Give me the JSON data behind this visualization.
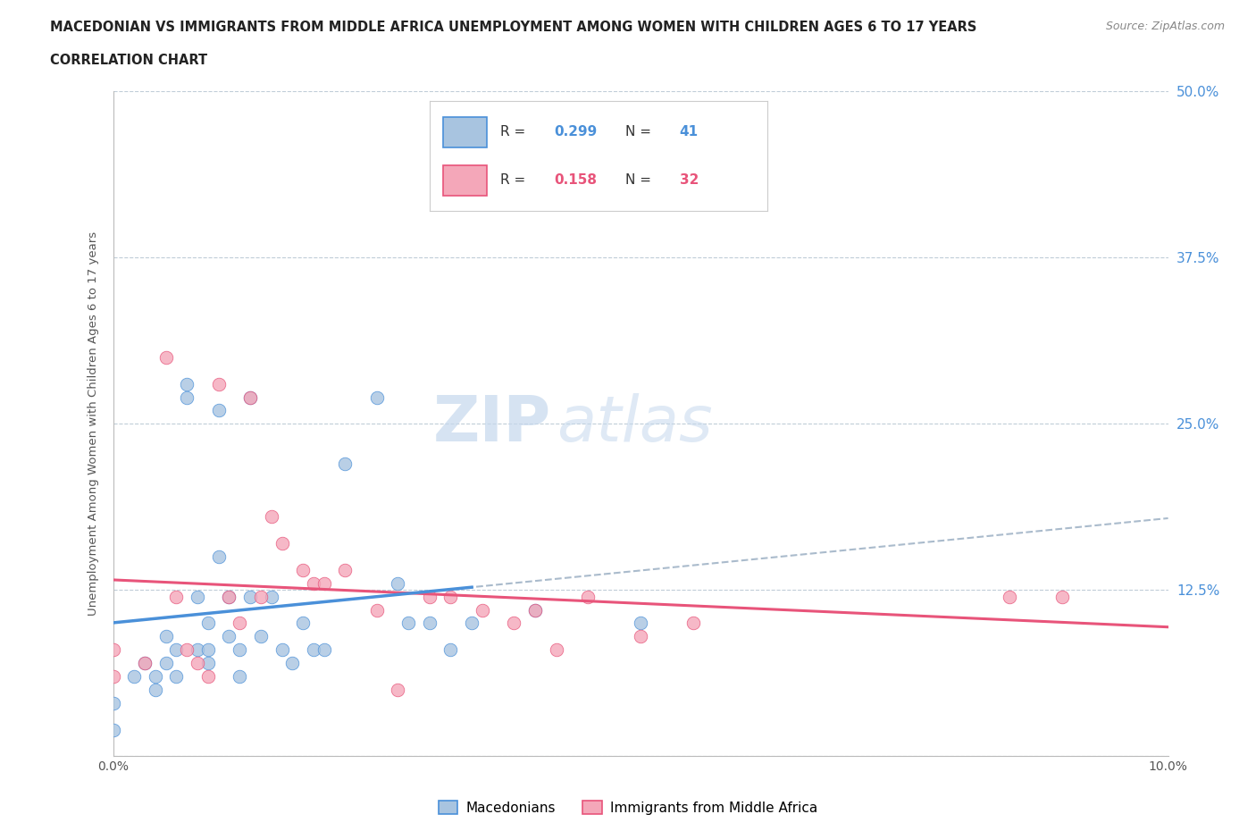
{
  "title_line1": "MACEDONIAN VS IMMIGRANTS FROM MIDDLE AFRICA UNEMPLOYMENT AMONG WOMEN WITH CHILDREN AGES 6 TO 17 YEARS",
  "title_line2": "CORRELATION CHART",
  "source": "Source: ZipAtlas.com",
  "ylabel": "Unemployment Among Women with Children Ages 6 to 17 years",
  "x_min": 0.0,
  "x_max": 0.1,
  "y_min": 0.0,
  "y_max": 0.5,
  "x_ticks": [
    0.0,
    0.02,
    0.04,
    0.06,
    0.08,
    0.1
  ],
  "x_tick_labels": [
    "0.0%",
    "",
    "",
    "",
    "",
    "10.0%"
  ],
  "y_ticks": [
    0.0,
    0.125,
    0.25,
    0.375,
    0.5
  ],
  "y_tick_labels": [
    "",
    "12.5%",
    "25.0%",
    "37.5%",
    "50.0%"
  ],
  "macedonian_R": 0.299,
  "macedonian_N": 41,
  "immigrant_R": 0.158,
  "immigrant_N": 32,
  "macedonian_color": "#a8c4e0",
  "immigrant_color": "#f4a7b9",
  "macedonian_line_color": "#4a90d9",
  "immigrant_line_color": "#e8547a",
  "trendline_dashed_color": "#aabbcc",
  "background_color": "#ffffff",
  "grid_color": "#c0cdd8",
  "macedonian_scatter_x": [
    0.0,
    0.0,
    0.002,
    0.003,
    0.004,
    0.004,
    0.005,
    0.005,
    0.006,
    0.006,
    0.007,
    0.007,
    0.008,
    0.008,
    0.009,
    0.009,
    0.009,
    0.01,
    0.01,
    0.011,
    0.011,
    0.012,
    0.012,
    0.013,
    0.013,
    0.014,
    0.015,
    0.016,
    0.017,
    0.018,
    0.019,
    0.02,
    0.022,
    0.025,
    0.027,
    0.028,
    0.03,
    0.032,
    0.034,
    0.04,
    0.05
  ],
  "macedonian_scatter_y": [
    0.04,
    0.02,
    0.06,
    0.07,
    0.05,
    0.06,
    0.09,
    0.07,
    0.08,
    0.06,
    0.28,
    0.27,
    0.12,
    0.08,
    0.1,
    0.08,
    0.07,
    0.26,
    0.15,
    0.12,
    0.09,
    0.08,
    0.06,
    0.27,
    0.12,
    0.09,
    0.12,
    0.08,
    0.07,
    0.1,
    0.08,
    0.08,
    0.22,
    0.27,
    0.13,
    0.1,
    0.1,
    0.08,
    0.1,
    0.11,
    0.1
  ],
  "immigrant_scatter_x": [
    0.0,
    0.0,
    0.003,
    0.005,
    0.006,
    0.007,
    0.008,
    0.009,
    0.01,
    0.011,
    0.012,
    0.013,
    0.014,
    0.015,
    0.016,
    0.018,
    0.019,
    0.02,
    0.022,
    0.025,
    0.027,
    0.03,
    0.032,
    0.035,
    0.038,
    0.04,
    0.042,
    0.045,
    0.05,
    0.055,
    0.085,
    0.09
  ],
  "immigrant_scatter_y": [
    0.08,
    0.06,
    0.07,
    0.3,
    0.12,
    0.08,
    0.07,
    0.06,
    0.28,
    0.12,
    0.1,
    0.27,
    0.12,
    0.18,
    0.16,
    0.14,
    0.13,
    0.13,
    0.14,
    0.11,
    0.05,
    0.12,
    0.12,
    0.11,
    0.1,
    0.11,
    0.08,
    0.12,
    0.09,
    0.1,
    0.12,
    0.12
  ],
  "watermark_part1": "ZIP",
  "watermark_part2": "atlas",
  "legend_macedonian_label": "Macedonians",
  "legend_immigrant_label": "Immigrants from Middle Africa"
}
